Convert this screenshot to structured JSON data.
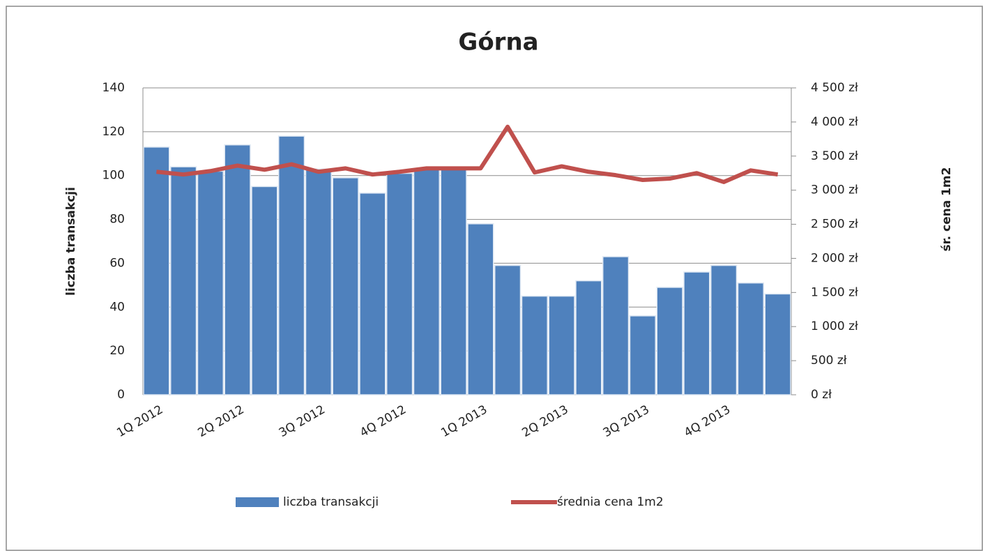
{
  "chart_data": {
    "type": "bar_line",
    "title": "Górna",
    "categories": [
      "1Q 2012",
      null,
      null,
      "2Q 2012",
      null,
      null,
      "3Q 2012",
      null,
      null,
      "4Q 2012",
      null,
      null,
      "1Q 2013",
      null,
      null,
      "2Q 2013",
      null,
      null,
      "3Q 2013",
      null,
      null,
      "4Q 2013",
      null,
      null
    ],
    "series": [
      {
        "name": "liczba transakcji",
        "color": "#4f81bd",
        "type": "bar",
        "axis": "y",
        "values": [
          113,
          104,
          102,
          114,
          95,
          118,
          103,
          99,
          92,
          101,
          103,
          103,
          78,
          59,
          45,
          45,
          52,
          63,
          36,
          49,
          56,
          59,
          51,
          46
        ]
      },
      {
        "name": "średnia cena 1m2",
        "color": "#c0504d",
        "type": "line",
        "axis": "y2",
        "values": [
          3270,
          3230,
          3280,
          3360,
          3300,
          3380,
          3270,
          3320,
          3230,
          3270,
          3320,
          3320,
          3320,
          3930,
          3260,
          3350,
          3270,
          3220,
          3150,
          3170,
          3250,
          3120,
          3290,
          3230
        ]
      }
    ],
    "ylabel": "liczba transakcji",
    "y2label": "śr. cena 1m2",
    "ylim": [
      0,
      140
    ],
    "yticks": [
      0,
      20,
      40,
      60,
      80,
      100,
      120,
      140
    ],
    "y2lim": [
      0,
      4500
    ],
    "y2ticks": [
      {
        "value": 0,
        "label": "0 zł"
      },
      {
        "value": 500,
        "label": "500 zł"
      },
      {
        "value": 1000,
        "label": "1 000 zł"
      },
      {
        "value": 1500,
        "label": "1 500 zł"
      },
      {
        "value": 2000,
        "label": "2 000 zł"
      },
      {
        "value": 2500,
        "label": "2 500 zł"
      },
      {
        "value": 3000,
        "label": "3 000 zł"
      },
      {
        "value": 3500,
        "label": "3 500 zł"
      },
      {
        "value": 4000,
        "label": "4 000 zł"
      },
      {
        "value": 4500,
        "label": "4 500 zł"
      }
    ],
    "grid": true,
    "legend": "bottom"
  }
}
